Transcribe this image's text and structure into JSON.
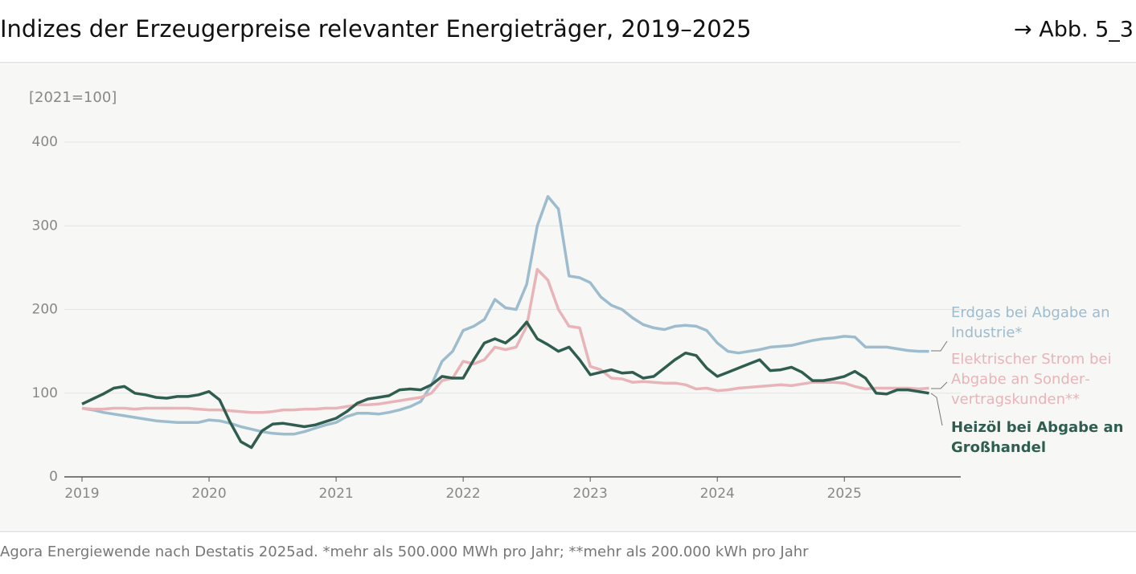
{
  "header": {
    "title": "Indizes der Erzeugerpreise relevanter Energieträger, 2019–2025",
    "figure_ref": "→ Abb. 5_3"
  },
  "chart_data": {
    "type": "line",
    "y_label": "[2021=100]",
    "categories": [
      "2019",
      null,
      null,
      null,
      null,
      null,
      null,
      null,
      null,
      null,
      null,
      null,
      "2020",
      null,
      null,
      null,
      null,
      null,
      null,
      null,
      null,
      null,
      null,
      null,
      "2021",
      null,
      null,
      null,
      null,
      null,
      null,
      null,
      null,
      null,
      null,
      null,
      "2022",
      null,
      null,
      null,
      null,
      null,
      null,
      null,
      null,
      null,
      null,
      null,
      "2023",
      null,
      null,
      null,
      null,
      null,
      null,
      null,
      null,
      null,
      null,
      null,
      "2024",
      null,
      null,
      null,
      null,
      null,
      null,
      null,
      null,
      null,
      null,
      null,
      "2025",
      null,
      null,
      null,
      null,
      null,
      null,
      null,
      null
    ],
    "ylim": [
      0,
      400
    ],
    "yticks": [
      0,
      100,
      200,
      300,
      400
    ],
    "grid": true,
    "series": [
      {
        "name": "Erdgas bei Abgabe an Industrie*",
        "color": "#9dbccd",
        "values": [
          82,
          80,
          77,
          75,
          73,
          71,
          69,
          67,
          66,
          65,
          65,
          65,
          68,
          67,
          64,
          60,
          57,
          54,
          52,
          51,
          51,
          54,
          58,
          62,
          65,
          72,
          76,
          76,
          75,
          77,
          80,
          84,
          90,
          110,
          138,
          150,
          175,
          180,
          188,
          212,
          202,
          200,
          230,
          300,
          335,
          320,
          240,
          238,
          232,
          215,
          205,
          200,
          190,
          182,
          178,
          176,
          180,
          181,
          180,
          175,
          160,
          150,
          148,
          150,
          152,
          155,
          156,
          157,
          160,
          163,
          165,
          166,
          168,
          167,
          155,
          155,
          155,
          153,
          151,
          150,
          150
        ]
      },
      {
        "name": "Elektrischer Strom bei Abgabe an Sonder­vertragskunden**",
        "color": "#e8b4b8",
        "values": [
          82,
          81,
          81,
          82,
          82,
          81,
          82,
          82,
          82,
          82,
          82,
          81,
          80,
          80,
          79,
          78,
          77,
          77,
          78,
          80,
          80,
          81,
          81,
          82,
          82,
          84,
          86,
          86,
          87,
          89,
          91,
          93,
          95,
          100,
          115,
          118,
          138,
          135,
          140,
          155,
          152,
          155,
          180,
          248,
          235,
          200,
          180,
          178,
          132,
          128,
          118,
          117,
          113,
          114,
          113,
          112,
          112,
          110,
          105,
          106,
          103,
          104,
          106,
          107,
          108,
          109,
          110,
          109,
          111,
          113,
          113,
          113,
          112,
          108,
          105,
          106,
          106,
          106,
          106,
          105,
          106
        ]
      },
      {
        "name": "Heizöl bei Abgabe an Großhandel",
        "color": "#2f5d50",
        "values": [
          87,
          93,
          99,
          106,
          108,
          100,
          98,
          95,
          94,
          96,
          96,
          98,
          102,
          92,
          65,
          42,
          35,
          55,
          63,
          64,
          62,
          60,
          62,
          66,
          70,
          78,
          88,
          93,
          95,
          97,
          104,
          105,
          104,
          110,
          120,
          118,
          118,
          140,
          160,
          165,
          160,
          170,
          185,
          165,
          158,
          150,
          155,
          140,
          122,
          125,
          128,
          124,
          125,
          118,
          120,
          130,
          140,
          148,
          145,
          130,
          120,
          125,
          130,
          135,
          140,
          127,
          128,
          131,
          125,
          115,
          115,
          117,
          120,
          126,
          118,
          100,
          99,
          104,
          104,
          102,
          100
        ]
      }
    ]
  },
  "footer": {
    "source": "Agora Energiewende nach Destatis 2025ad. *mehr als 500.000 MWh pro Jahr; **mehr als 200.000 kWh pro Jahr"
  }
}
